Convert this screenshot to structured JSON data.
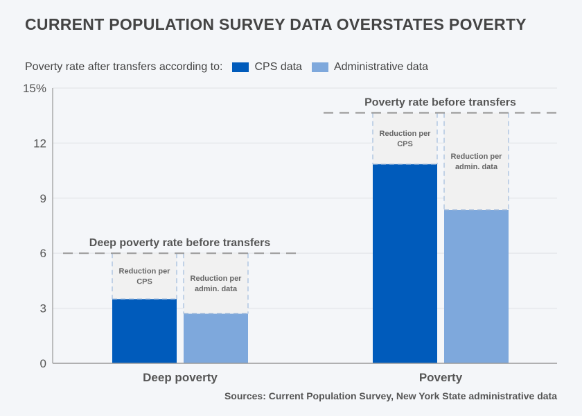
{
  "title": "CURRENT POPULATION SURVEY DATA OVERSTATES POVERTY",
  "legend": {
    "prefix": "Poverty rate after transfers according to:",
    "items": [
      {
        "label": "CPS data",
        "color": "#005bbb"
      },
      {
        "label": "Administrative data",
        "color": "#7ea8dc"
      }
    ]
  },
  "source": "Sources: Current Population Survey, New York State administrative data",
  "chart_data": {
    "type": "bar",
    "title": "CURRENT POPULATION SURVEY DATA OVERSTATES POVERTY",
    "xlabel": "",
    "ylabel": "",
    "ylim": [
      0,
      15
    ],
    "yticks": [
      0,
      3,
      6,
      9,
      12,
      15
    ],
    "ytick_labels": [
      "0",
      "3",
      "6",
      "9",
      "12",
      "15%"
    ],
    "grid": true,
    "legend_position": "top-left",
    "categories": [
      "Deep poverty",
      "Poverty"
    ],
    "series": [
      {
        "name": "CPS data",
        "values": [
          3.5,
          10.85
        ],
        "color": "#005bbb"
      },
      {
        "name": "Administrative data",
        "values": [
          2.7,
          8.35
        ],
        "color": "#7ea8dc"
      }
    ],
    "before_transfers": [
      {
        "label": "Deep poverty rate before transfers",
        "value": 6.0
      },
      {
        "label": "Poverty rate before transfers",
        "value": 13.65
      }
    ],
    "reduction_labels": [
      "Reduction per CPS",
      "Reduction per admin. data"
    ]
  }
}
